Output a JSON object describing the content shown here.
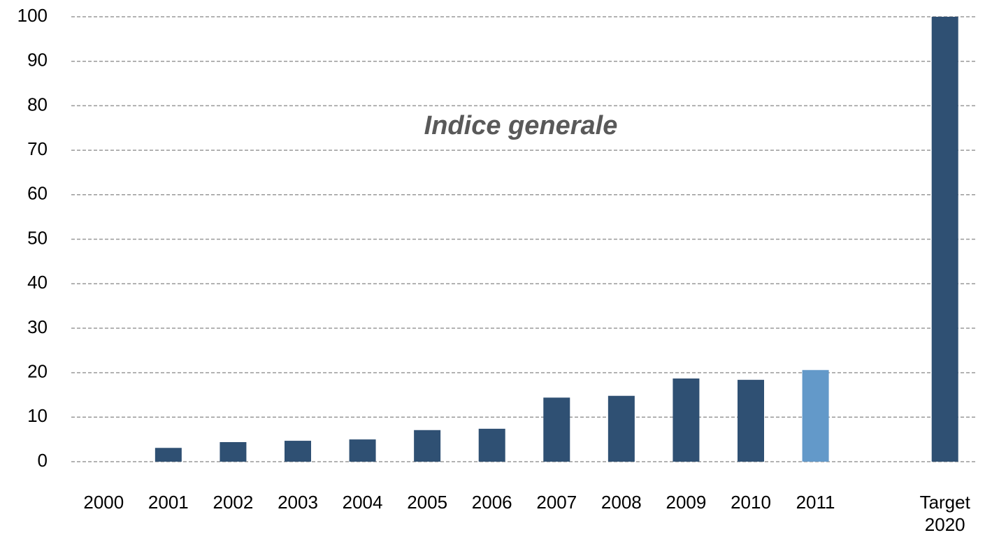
{
  "chart_data": {
    "type": "bar",
    "annotation": "Indice generale",
    "categories": [
      "2000",
      "2001",
      "2002",
      "2003",
      "2004",
      "2005",
      "2006",
      "2007",
      "2008",
      "2009",
      "2010",
      "2011",
      null,
      "Target 2020"
    ],
    "values": [
      0,
      3.1,
      4.4,
      4.7,
      5.0,
      7.1,
      7.4,
      14.4,
      14.8,
      18.7,
      18.4,
      20.6,
      null,
      100
    ],
    "colors": [
      "#2f5073",
      "#2f5073",
      "#2f5073",
      "#2f5073",
      "#2f5073",
      "#2f5073",
      "#2f5073",
      "#2f5073",
      "#2f5073",
      "#2f5073",
      "#2f5073",
      "#6399c9",
      "#2f5073",
      "#2f5073"
    ],
    "ylim": [
      0,
      100
    ],
    "yticks": [
      0,
      10,
      20,
      30,
      40,
      50,
      60,
      70,
      80,
      90,
      100
    ],
    "grid": true
  }
}
